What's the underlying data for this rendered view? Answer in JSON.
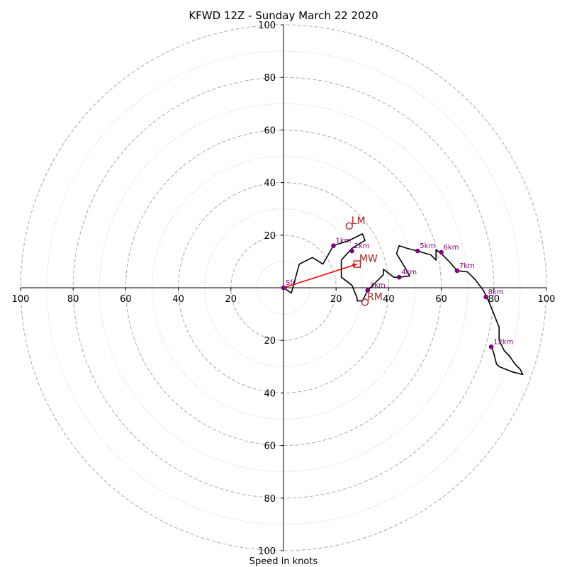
{
  "chart_data": {
    "type": "hodograph",
    "title": "KFWD 12Z - Sunday March 22 2020",
    "xlabel": "Speed in knots",
    "xlim": [
      -100,
      100
    ],
    "ylim": [
      -100,
      100
    ],
    "ring_major": [
      20,
      40,
      60,
      80,
      100
    ],
    "ring_minor": [
      10,
      30,
      50,
      70,
      90
    ],
    "x_ticks": [
      {
        "value": -100,
        "label": "100"
      },
      {
        "value": -80,
        "label": "80"
      },
      {
        "value": -60,
        "label": "60"
      },
      {
        "value": -40,
        "label": "40"
      },
      {
        "value": -20,
        "label": "20"
      },
      {
        "value": 20,
        "label": "20"
      },
      {
        "value": 40,
        "label": "40"
      },
      {
        "value": 60,
        "label": "60"
      },
      {
        "value": 80,
        "label": "80"
      },
      {
        "value": 100,
        "label": "100"
      }
    ],
    "y_ticks": [
      {
        "value": 100,
        "label": "100"
      },
      {
        "value": 80,
        "label": "80"
      },
      {
        "value": 60,
        "label": "60"
      },
      {
        "value": 40,
        "label": "40"
      },
      {
        "value": 20,
        "label": "20"
      },
      {
        "value": -20,
        "label": "20"
      },
      {
        "value": -40,
        "label": "40"
      },
      {
        "value": -60,
        "label": "60"
      },
      {
        "value": -80,
        "label": "80"
      },
      {
        "value": -100,
        "label": "100"
      }
    ],
    "trace": [
      [
        0,
        0
      ],
      [
        3,
        -2
      ],
      [
        6,
        9
      ],
      [
        11,
        11.5
      ],
      [
        15,
        9
      ],
      [
        19,
        16
      ],
      [
        25,
        18
      ],
      [
        30,
        20.5
      ],
      [
        31,
        18
      ],
      [
        26,
        15
      ],
      [
        22,
        10.5
      ],
      [
        22,
        4
      ],
      [
        26,
        1
      ],
      [
        28,
        -4
      ],
      [
        28,
        -5
      ],
      [
        30,
        -5
      ],
      [
        32,
        -1
      ],
      [
        35,
        2
      ],
      [
        38,
        5
      ],
      [
        38,
        7
      ],
      [
        42,
        4
      ],
      [
        44,
        4
      ],
      [
        48,
        4.5
      ],
      [
        46,
        8
      ],
      [
        43,
        13
      ],
      [
        44,
        16
      ],
      [
        47,
        15
      ],
      [
        51,
        14
      ],
      [
        56,
        12.5
      ],
      [
        58,
        10.5
      ],
      [
        58,
        14.5
      ],
      [
        60,
        13
      ],
      [
        63,
        10
      ],
      [
        66,
        6.5
      ],
      [
        70,
        6
      ],
      [
        73,
        3
      ],
      [
        76,
        -1
      ],
      [
        78,
        -5
      ],
      [
        80,
        -10
      ],
      [
        82,
        -15
      ],
      [
        82,
        -20
      ],
      [
        84,
        -24
      ],
      [
        86,
        -26
      ],
      [
        88,
        -29
      ],
      [
        90,
        -31
      ],
      [
        91,
        -33
      ],
      [
        87,
        -32
      ],
      [
        82,
        -30
      ],
      [
        81,
        -29
      ],
      [
        80,
        -25
      ],
      [
        79,
        -22
      ]
    ],
    "height_markers": [
      {
        "label": "Sfc",
        "x": 0,
        "y": 0
      },
      {
        "label": "1km",
        "x": 19,
        "y": 16
      },
      {
        "label": "2km",
        "x": 26,
        "y": 14
      },
      {
        "label": "3km",
        "x": 32,
        "y": -1
      },
      {
        "label": "4km",
        "x": 44,
        "y": 4
      },
      {
        "label": "5km",
        "x": 51,
        "y": 14
      },
      {
        "label": "6km",
        "x": 60,
        "y": 13.5
      },
      {
        "label": "7km",
        "x": 66,
        "y": 6.5
      },
      {
        "label": "8km",
        "x": 77,
        "y": -3.5
      },
      {
        "label": "12km",
        "x": 79,
        "y": -22.5
      }
    ],
    "motion_vectors": [
      {
        "label": "LM",
        "shape": "circle",
        "x": 25,
        "y": 23.5
      },
      {
        "label": "MW",
        "shape": "square",
        "x": 28,
        "y": 9
      },
      {
        "label": "RM",
        "shape": "circle",
        "x": 31,
        "y": -5.5
      }
    ],
    "mean_wind_arrow": {
      "from": [
        0,
        0
      ],
      "to": [
        28,
        9
      ]
    },
    "colors": {
      "trace": "#000000",
      "height_markers": "#800080",
      "motion_vectors": "#b22222",
      "mean_wind_arrow": "#ff0000"
    }
  }
}
